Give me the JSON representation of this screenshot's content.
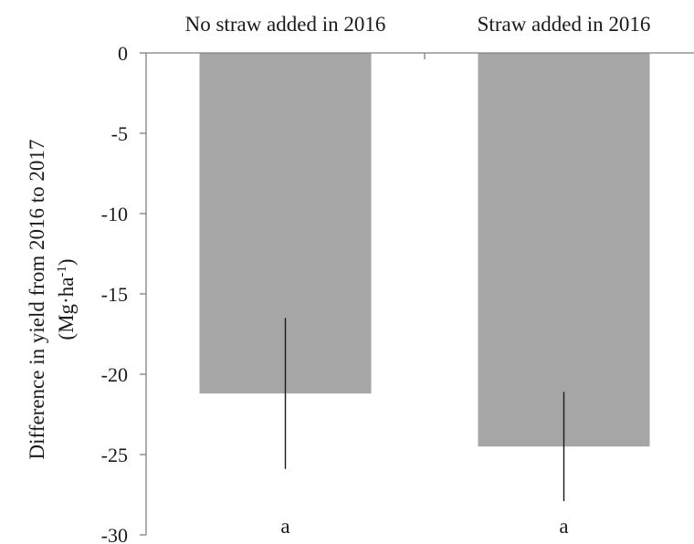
{
  "chart_data": {
    "type": "bar",
    "categories": [
      "No straw added in 2016",
      "Straw added in 2016"
    ],
    "values": [
      -21.2,
      -24.5
    ],
    "error_bars": [
      {
        "low": -25.9,
        "high": -16.5
      },
      {
        "low": -27.9,
        "high": -21.1
      }
    ],
    "significance_letters": [
      "a",
      "a"
    ],
    "ylabel_line1": "Difference in yield from 2016 to 2017",
    "ylabel_line2_base": "(Mg·ha",
    "ylabel_line2_sup": "-1",
    "ylabel_line2_end": ")",
    "ylim": [
      -30,
      0
    ],
    "yticks": [
      0,
      -5,
      -10,
      -15,
      -20,
      -25,
      -30
    ],
    "ytick_labels": [
      "0",
      "-5",
      "-10",
      "-15",
      "-20",
      "-25",
      "-30"
    ],
    "category_axis_position": "top",
    "grid": false,
    "legend": "none",
    "bar_color": "#a6a6a6",
    "axis_color": "#808080",
    "error_color": "#1a1a1a"
  }
}
